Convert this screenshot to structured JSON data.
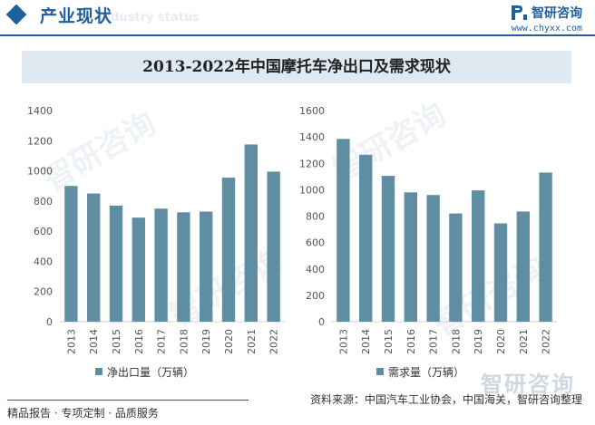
{
  "header": {
    "title": "产业现状",
    "ghost_text": "Industry status",
    "brand_name": "智研咨询",
    "brand_url": "www.chyxx.com",
    "logo_icon": "chyxx-logo-icon",
    "accent": "#1f5f9c"
  },
  "title_bar": {
    "title": "2013-2022年中国摩托车净出口及需求现状"
  },
  "watermark": {
    "text": "智研咨询"
  },
  "footer": {
    "left": "精品报告 · 专项定制 · 品质服务",
    "source": "资料来源：中国汽车工业协会，中国海关，智研咨询整理"
  },
  "chart_data": [
    {
      "type": "bar",
      "title": "",
      "categories": [
        "2013",
        "2014",
        "2015",
        "2016",
        "2017",
        "2018",
        "2019",
        "2020",
        "2021",
        "2022"
      ],
      "values": [
        900,
        850,
        770,
        690,
        750,
        725,
        730,
        955,
        1175,
        995
      ],
      "ylim": [
        0,
        1400
      ],
      "yticks": [
        0,
        200,
        400,
        600,
        800,
        1000,
        1200,
        1400
      ],
      "legend": "净出口量（万辆）",
      "color": "#5f8ea3",
      "xlabel": "",
      "ylabel": ""
    },
    {
      "type": "bar",
      "title": "",
      "categories": [
        "2013",
        "2014",
        "2015",
        "2016",
        "2017",
        "2018",
        "2019",
        "2020",
        "2021",
        "2022"
      ],
      "values": [
        1385,
        1265,
        1105,
        980,
        960,
        820,
        995,
        745,
        835,
        1130
      ],
      "ylim": [
        0,
        1600
      ],
      "yticks": [
        0,
        200,
        400,
        600,
        800,
        1000,
        1200,
        1400,
        1600
      ],
      "legend": "需求量（万辆）",
      "color": "#5f8ea3",
      "xlabel": "",
      "ylabel": ""
    }
  ]
}
